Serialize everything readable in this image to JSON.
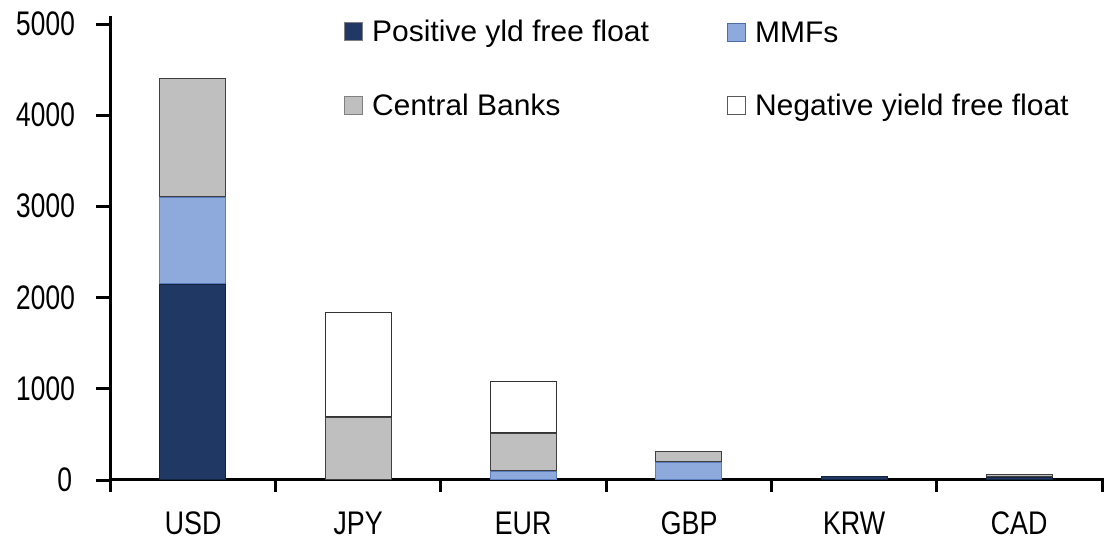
{
  "chart_data": {
    "type": "bar",
    "stacked": true,
    "title": "",
    "xlabel": "",
    "ylabel": "",
    "categories": [
      "USD",
      "JPY",
      "EUR",
      "GBP",
      "KRW",
      "CAD"
    ],
    "series": [
      {
        "name": "Positive yld free float",
        "color": "#1F3864",
        "border_color": "#14233E",
        "values": [
          2150,
          0,
          0,
          0,
          45,
          35
        ]
      },
      {
        "name": "MMFs",
        "color": "#8EA9DB",
        "border_color": "#5B7DBD",
        "values": [
          950,
          0,
          100,
          200,
          0,
          0
        ]
      },
      {
        "name": "Central Banks",
        "color": "#BFBFBF",
        "border_color": "#404040",
        "values": [
          1300,
          690,
          420,
          120,
          0,
          30
        ]
      },
      {
        "name": "Negative yield free float",
        "color": "#FFFFFF",
        "border_color": "#333333",
        "values": [
          0,
          1150,
          570,
          0,
          0,
          0
        ]
      }
    ],
    "totals": {
      "USD": 4400,
      "JPY": 1840,
      "EUR": 1090,
      "GBP": 320,
      "KRW": 45,
      "CAD": 65
    },
    "ylim": [
      0,
      5000
    ],
    "y_ticks": [
      "0",
      "1000",
      "2000",
      "3000",
      "4000",
      "5000"
    ],
    "grid": false,
    "legend_position": "top-two-rows",
    "legend_swatch_borders": {
      "Positive yld free float": "#808080",
      "MMFs": "#4D6EA8",
      "Central Banks": "#808080",
      "Negative yield free float": "#595959"
    },
    "axis_color": "#000000",
    "background_color": "#FFFFFF"
  }
}
